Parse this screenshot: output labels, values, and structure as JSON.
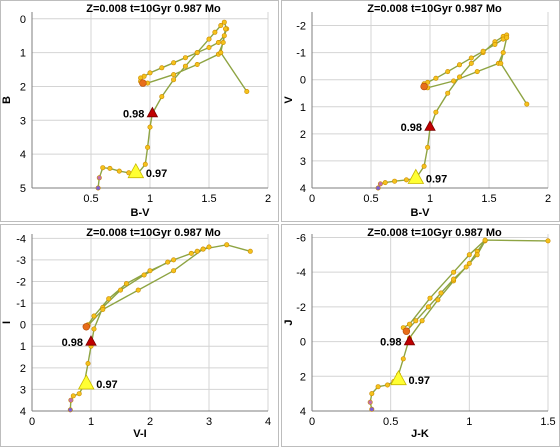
{
  "colors": {
    "iso_line": "#8ea443",
    "iso_point": "#f5c21c",
    "iso_point_edge": "#c98a00",
    "marker_098": "#c00000",
    "marker_097": "#ffff33",
    "tail_start": "#e86d1a",
    "tail_end": "#7b5fd6"
  },
  "chart_data": [
    {
      "type": "line",
      "title": "Z=0.008  t=10Gyr  0.987 Mo",
      "xlabel": "B-V",
      "ylabel": "B",
      "xlim": [
        0,
        2
      ],
      "ylim": [
        5,
        -0.2
      ],
      "y_inverted": true,
      "grid": true,
      "xticks": [
        0.5,
        1,
        1.5,
        2
      ],
      "yticks": [
        0,
        1,
        2,
        3,
        4,
        5
      ],
      "series": [
        {
          "x": [
            0.56,
            0.57,
            0.6,
            0.66,
            0.74,
            0.82,
            0.9,
            0.96,
            0.98,
            1.0,
            1.02,
            1.1,
            1.2,
            1.3,
            1.4,
            1.5,
            1.55,
            1.6,
            1.63,
            1.65,
            1.63,
            1.58,
            1.5,
            1.4,
            1.3,
            1.2,
            1.1,
            1.0,
            0.95,
            0.92,
            0.92,
            0.94,
            0.98,
            1.2,
            1.4,
            1.58,
            1.62,
            1.64,
            1.6,
            1.82
          ],
          "y": [
            5.0,
            4.7,
            4.4,
            4.42,
            4.5,
            4.55,
            4.56,
            4.3,
            3.8,
            3.2,
            2.8,
            2.3,
            1.8,
            1.4,
            1.0,
            0.6,
            0.4,
            0.2,
            0.1,
            0.3,
            0.5,
            0.7,
            0.85,
            1.0,
            1.15,
            1.3,
            1.45,
            1.6,
            1.7,
            1.75,
            1.85,
            1.9,
            1.9,
            1.65,
            1.35,
            1.05,
            0.7,
            0.3,
            1.0,
            2.15
          ]
        }
      ],
      "markers": [
        {
          "label": "0.98",
          "x": 1.02,
          "y": 2.8,
          "kind": "red-triangle"
        },
        {
          "label": "0.97",
          "x": 0.88,
          "y": 4.55,
          "kind": "yellow-triangle"
        }
      ]
    },
    {
      "type": "line",
      "title": "Z=0.008  t=10Gyr  0.987 Mo",
      "xlabel": "B-V",
      "ylabel": "V",
      "xlim": [
        0,
        2
      ],
      "ylim": [
        4,
        -2.5
      ],
      "y_inverted": true,
      "grid": true,
      "xticks": [
        0,
        0.5,
        1,
        1.5,
        2
      ],
      "yticks": [
        -2,
        -1,
        0,
        1,
        2,
        3,
        4
      ],
      "series": [
        {
          "x": [
            0.56,
            0.58,
            0.62,
            0.7,
            0.8,
            0.88,
            0.95,
            0.98,
            1.0,
            1.05,
            1.15,
            1.25,
            1.35,
            1.45,
            1.55,
            1.62,
            1.65,
            1.62,
            1.55,
            1.45,
            1.35,
            1.25,
            1.15,
            1.05,
            0.98,
            0.95,
            0.95,
            0.98,
            1.2,
            1.4,
            1.58,
            1.62,
            1.65,
            1.6,
            1.82
          ],
          "y": [
            4.0,
            3.85,
            3.8,
            3.75,
            3.7,
            3.65,
            3.2,
            2.5,
            1.8,
            1.2,
            0.5,
            -0.1,
            -0.6,
            -1.0,
            -1.4,
            -1.6,
            -1.65,
            -1.5,
            -1.3,
            -1.05,
            -0.8,
            -0.55,
            -0.3,
            -0.05,
            0.1,
            0.15,
            0.25,
            0.3,
            0.05,
            -0.3,
            -0.6,
            -1.0,
            -1.55,
            -0.6,
            0.9
          ]
        }
      ],
      "markers": [
        {
          "label": "0.98",
          "x": 1.0,
          "y": 1.75,
          "kind": "red-triangle"
        },
        {
          "label": "0.97",
          "x": 0.88,
          "y": 3.65,
          "kind": "yellow-triangle"
        }
      ]
    },
    {
      "type": "line",
      "title": "Z=0.008  t=10Gyr  0.987 Mo",
      "xlabel": "V-I",
      "ylabel": "I",
      "xlim": [
        0,
        4
      ],
      "ylim": [
        4,
        -4.2
      ],
      "y_inverted": true,
      "grid": true,
      "xticks": [
        0,
        1,
        2,
        3,
        4
      ],
      "yticks": [
        -4,
        -3,
        -2,
        -1,
        0,
        1,
        2,
        3,
        4
      ],
      "series": [
        {
          "x": [
            0.65,
            0.66,
            0.7,
            0.8,
            0.88,
            0.95,
            1.0,
            1.05,
            1.2,
            1.5,
            1.9,
            2.3,
            2.7,
            2.9,
            3.0,
            2.8,
            2.4,
            2.0,
            1.6,
            1.3,
            1.05,
            0.95,
            0.92,
            0.95,
            1.2,
            1.8,
            2.4,
            2.9,
            3.3,
            3.7
          ],
          "y": [
            3.95,
            3.5,
            3.3,
            3.2,
            2.8,
            1.8,
            1.0,
            0.2,
            -0.8,
            -1.6,
            -2.3,
            -2.9,
            -3.3,
            -3.5,
            -3.6,
            -3.4,
            -3.0,
            -2.5,
            -1.9,
            -1.2,
            -0.4,
            0.0,
            0.1,
            0.05,
            -0.7,
            -1.6,
            -2.5,
            -3.5,
            -3.7,
            -3.4
          ]
        }
      ],
      "markers": [
        {
          "label": "0.98",
          "x": 1.0,
          "y": 0.8,
          "kind": "red-triangle"
        },
        {
          "label": "0.97",
          "x": 0.92,
          "y": 2.75,
          "kind": "yellow-triangle"
        }
      ]
    },
    {
      "type": "line",
      "title": "Z=0.008  t=10Gyr  0.987 Mo",
      "xlabel": "J-K",
      "ylabel": "J",
      "xlim": [
        0,
        1.5
      ],
      "ylim": [
        4,
        -6.2
      ],
      "y_inverted": true,
      "grid": true,
      "xticks": [
        0,
        0.5,
        1,
        1.5
      ],
      "yticks": [
        -6,
        -4,
        -2,
        0,
        2,
        4
      ],
      "series": [
        {
          "x": [
            0.38,
            0.37,
            0.38,
            0.42,
            0.48,
            0.52,
            0.55,
            0.58,
            0.62,
            0.7,
            0.8,
            0.9,
            1.0,
            1.05,
            1.1,
            1.05,
            0.98,
            0.9,
            0.82,
            0.74,
            0.66,
            0.6,
            0.58,
            0.62,
            0.75,
            0.9,
            1.0,
            1.1,
            1.5
          ],
          "y": [
            3.9,
            3.5,
            3.0,
            2.6,
            2.5,
            2.3,
            1.9,
            1.0,
            -0.2,
            -1.2,
            -2.4,
            -3.5,
            -4.5,
            -5.2,
            -5.8,
            -5.0,
            -4.3,
            -3.6,
            -2.8,
            -2.0,
            -1.2,
            -0.6,
            -0.8,
            -1.0,
            -2.5,
            -4.0,
            -5.0,
            -5.85,
            -5.8
          ]
        }
      ],
      "markers": [
        {
          "label": "0.98",
          "x": 0.62,
          "y": 0.0,
          "kind": "red-triangle"
        },
        {
          "label": "0.97",
          "x": 0.55,
          "y": 2.2,
          "kind": "yellow-triangle"
        }
      ]
    }
  ]
}
